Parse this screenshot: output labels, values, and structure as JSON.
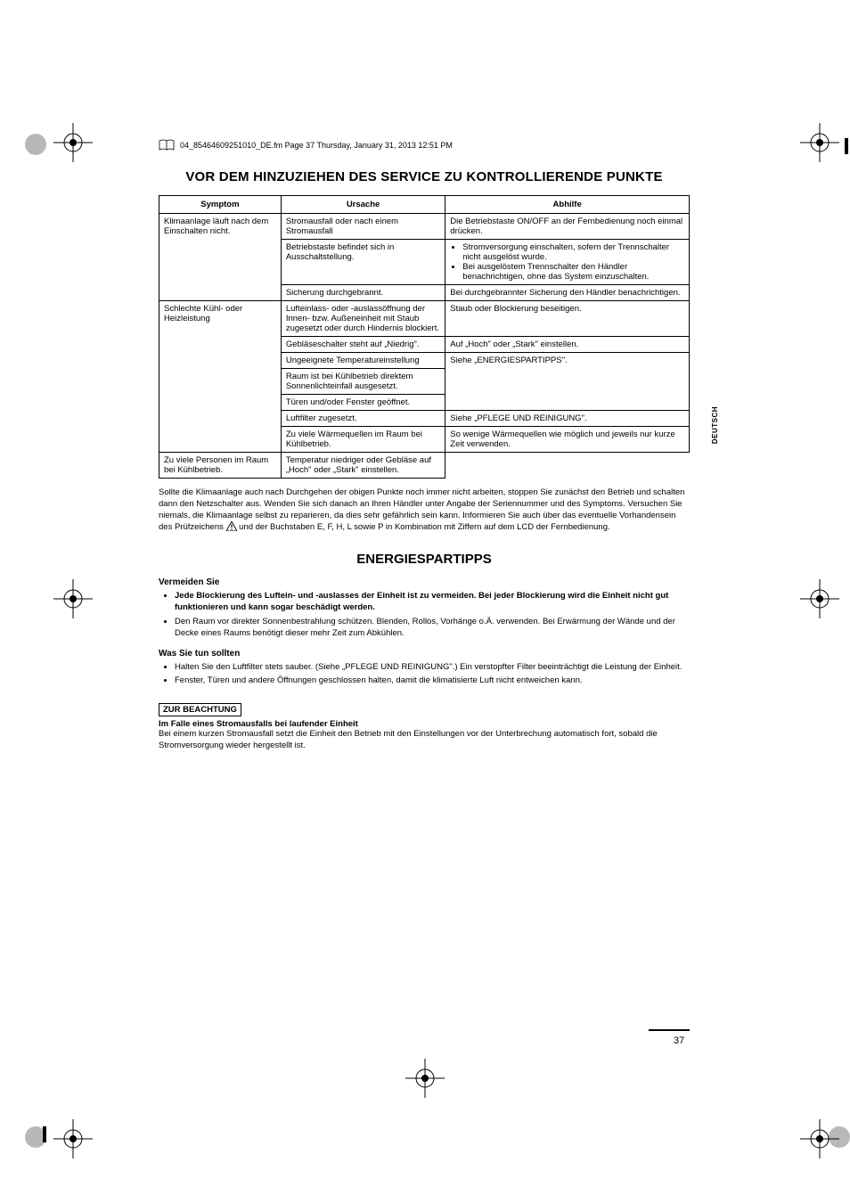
{
  "header": {
    "text": "04_85464609251010_DE.fm  Page 37  Thursday, January 31, 2013  12:51 PM"
  },
  "title1": "VOR DEM HINZUZIEHEN DES SERVICE ZU KONTROLLIERENDE PUNKTE",
  "table": {
    "headers": {
      "symptom": "Symptom",
      "cause": "Ursache",
      "remedy": "Abhilfe"
    },
    "rows": [
      {
        "symptom": "Klimaanlage läuft nach dem Einschalten nicht.",
        "symptom_rowspan": 3,
        "cause": "Stromausfall oder nach einem Stromausfall",
        "remedy": "Die Betriebstaste ON/OFF an der Fernbedienung noch einmal drücken."
      },
      {
        "cause": "Betriebstaste befindet sich in Ausschaltstellung.",
        "remedy_list": [
          "Stromversorgung einschalten, sofern der Trennschalter nicht ausgelöst wurde.",
          "Bei ausgelöstem Trennschalter den Händler benachrichtigen, ohne das System einzuschalten."
        ]
      },
      {
        "cause": "Sicherung durchgebrannt.",
        "remedy": "Bei durchgebrannter Sicherung den Händler benachrichtigen."
      },
      {
        "symptom": "Schlechte Kühl- oder Heizleistung",
        "symptom_rowspan": 7,
        "cause": "Lufteinlass- oder -auslassöffnung der Innen- bzw. Außeneinheit mit Staub zugesetzt oder durch Hindernis blockiert.",
        "remedy": "Staub oder Blockierung beseitigen."
      },
      {
        "cause": "Gebläseschalter steht auf „Niedrig\".",
        "remedy": "Auf „Hoch\" oder „Stark\" einstellen."
      },
      {
        "cause": "Ungeeignete Temperatureinstellung",
        "remedy": "Siehe „ENERGIESPARTIPPS\".",
        "remedy_rowspan": 3
      },
      {
        "cause": "Raum ist bei Kühlbetrieb direktem Sonnenlichteinfall ausgesetzt."
      },
      {
        "cause": "Türen und/oder Fenster geöffnet."
      },
      {
        "cause": "Luftfilter zugesetzt.",
        "remedy": "Siehe „PFLEGE UND REINIGUNG\"."
      },
      {
        "cause": "Zu viele Wärmequellen im Raum bei Kühlbetrieb.",
        "remedy": "So wenige Wärmequellen wie möglich und jeweils nur kurze Zeit verwenden."
      },
      {
        "cause": "Zu viele Personen im Raum bei Kühlbetrieb.",
        "remedy": "Temperatur niedriger oder Gebläse auf „Hoch\" oder „Stark\" einstellen."
      }
    ]
  },
  "para_below_table_a": "Sollte die Klimaanlage auch nach Durchgehen der obigen Punkte noch immer nicht arbeiten, stoppen Sie zunächst den Betrieb und schalten dann den Netzschalter aus. Wenden Sie sich danach an Ihren Händler unter Angabe der Seriennummer und des Symptoms. Versuchen Sie niemals, die Klimaanlage selbst zu reparieren, da dies sehr gefährlich sein kann. Informieren Sie auch über das eventuelle Vorhandensein des Prüfzeichens ",
  "para_below_table_b": " und der Buchstaben E, F, H, L sowie P in Kombination mit Ziffern auf dem LCD der Fernbedienung.",
  "title2": "ENERGIESPARTIPPS",
  "sec1": {
    "head": "Vermeiden Sie",
    "items": [
      {
        "bold": true,
        "text": "Jede Blockierung des Luftein- und -auslasses der Einheit ist zu vermeiden. Bei jeder Blockierung wird die Einheit nicht gut funktionieren und kann sogar beschädigt werden."
      },
      {
        "bold": false,
        "text": "Den Raum vor direkter Sonnenbestrahlung schützen. Blenden, Rollos, Vorhänge o.Ä. verwenden. Bei Erwärmung der Wände und der Decke eines Raums benötigt dieser mehr Zeit zum Abkühlen."
      }
    ]
  },
  "sec2": {
    "head": "Was Sie tun sollten",
    "items": [
      {
        "text": "Halten Sie den Luftfilter stets sauber. (Siehe „PFLEGE UND REINIGUNG\".) Ein verstopfter Filter beeinträchtigt die Leistung der Einheit."
      },
      {
        "text": "Fenster, Türen und andere Öffnungen geschlossen halten, damit die klimatisierte Luft nicht entweichen kann."
      }
    ]
  },
  "notice": {
    "box": "ZUR BEACHTUNG",
    "head": "Im Falle eines Stromausfalls bei laufender Einheit",
    "body": "Bei einem kurzen Stromausfall setzt die Einheit den Betrieb mit den Einstellungen vor der Unterbrechung automatisch fort, sobald die Stromversorgung wieder hergestellt ist."
  },
  "side_label": "DEUTSCH",
  "page_number": "37",
  "colors": {
    "text": "#000000",
    "bg": "#ffffff",
    "gray": "#b8b8b8"
  }
}
